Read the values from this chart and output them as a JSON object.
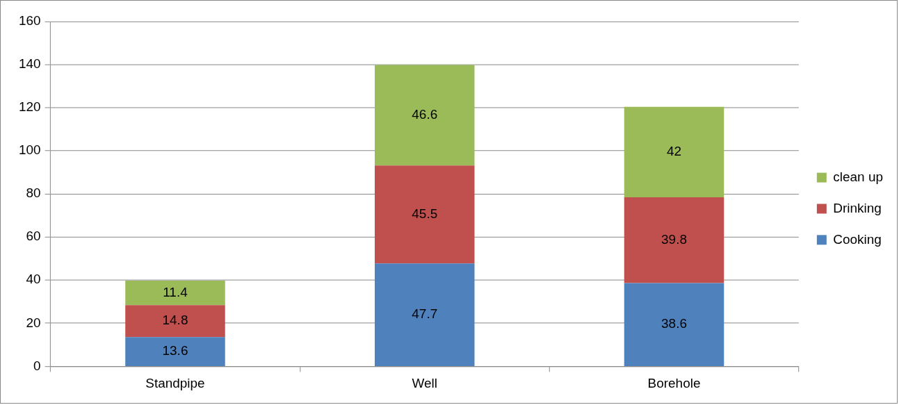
{
  "chart_data": {
    "type": "bar",
    "stacked": true,
    "categories": [
      "Standpipe",
      "Well",
      "Borehole"
    ],
    "series": [
      {
        "name": "Cooking",
        "color": "#4f81bd",
        "values": [
          13.6,
          47.7,
          38.6
        ]
      },
      {
        "name": "Drinking",
        "color": "#c0504d",
        "values": [
          14.8,
          45.5,
          39.8
        ]
      },
      {
        "name": "clean up",
        "color": "#9bbb59",
        "values": [
          11.4,
          46.6,
          42
        ]
      }
    ],
    "ylim": [
      0,
      160
    ],
    "yticks": [
      0,
      20,
      40,
      60,
      80,
      100,
      120,
      140,
      160
    ],
    "grid": "y",
    "legend": "right",
    "data_labels": true
  }
}
